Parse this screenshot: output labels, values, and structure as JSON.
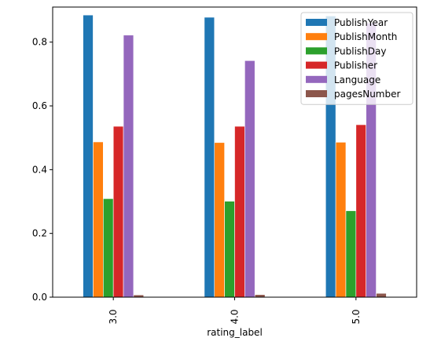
{
  "chart_data": {
    "type": "bar",
    "categories": [
      "3.0",
      "4.0",
      "5.0"
    ],
    "xlabel": "rating_label",
    "ylabel": "",
    "ylim": [
      0,
      0.91
    ],
    "yticks": [
      "0.0",
      "0.2",
      "0.4",
      "0.6",
      "0.8"
    ],
    "legend_position": "top-right",
    "grid": false,
    "series": [
      {
        "name": "PublishYear",
        "color": "#1f77b4",
        "values": [
          0.885,
          0.878,
          0.882
        ]
      },
      {
        "name": "PublishMonth",
        "color": "#ff7f0e",
        "values": [
          0.487,
          0.485,
          0.486
        ]
      },
      {
        "name": "PublishDay",
        "color": "#2ca02c",
        "values": [
          0.309,
          0.301,
          0.271
        ]
      },
      {
        "name": "Publisher",
        "color": "#d62728",
        "values": [
          0.536,
          0.536,
          0.541
        ]
      },
      {
        "name": "Language",
        "color": "#9467bd",
        "values": [
          0.822,
          0.742,
          0.86
        ]
      },
      {
        "name": "pagesNumber",
        "color": "#8c564b",
        "values": [
          0.007,
          0.008,
          0.012
        ]
      }
    ]
  }
}
